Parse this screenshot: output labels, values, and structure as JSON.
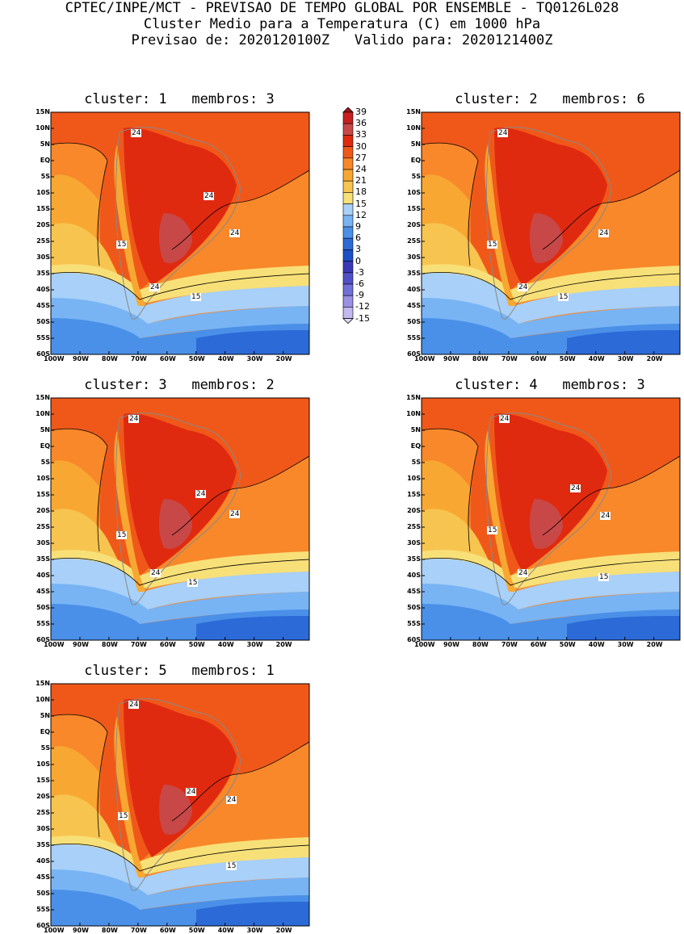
{
  "header": {
    "line1": "CPTEC/INPE/MCT - PREVISAO DE TEMPO GLOBAL POR ENSEMBLE - TQ0126L028",
    "line2": "Cluster Medio para a Temperatura (C) em 1000 hPa",
    "line3": "Previsao de: 2020120100Z   Valido para: 2020121400Z"
  },
  "lat_ticks": [
    "15N",
    "10N",
    "5N",
    "EQ",
    "5S",
    "10S",
    "15S",
    "20S",
    "25S",
    "30S",
    "35S",
    "40S",
    "45S",
    "50S",
    "55S",
    "60S"
  ],
  "lon_ticks": [
    "100W",
    "90W",
    "80W",
    "70W",
    "60W",
    "50W",
    "40W",
    "30W",
    "20W"
  ],
  "colorbar": {
    "labels": [
      "39",
      "36",
      "33",
      "30",
      "27",
      "24",
      "21",
      "18",
      "15",
      "12",
      "9",
      "6",
      "3",
      "0",
      "-3",
      "-6",
      "-9",
      "-12",
      "-15"
    ],
    "colors": [
      "#a01818",
      "#c82020",
      "#c84848",
      "#e02a10",
      "#f0581a",
      "#f8882a",
      "#f8a832",
      "#f8c450",
      "#f8e078",
      "#a8d0f8",
      "#78b4f4",
      "#4a90e8",
      "#2c6ad8",
      "#1c50c8",
      "#3a3ab8",
      "#5050c8",
      "#7070d8",
      "#9a90e4",
      "#c4b8f0",
      "#e0d8f8"
    ]
  },
  "panels": [
    {
      "title": "cluster: 1   membros: 3",
      "labels": [
        "24",
        "24",
        "24",
        "15",
        "24",
        "15"
      ]
    },
    {
      "title": "cluster: 2   membros: 6",
      "labels": [
        "24",
        "24",
        "15",
        "24",
        "15"
      ]
    },
    {
      "title": "cluster: 3   membros: 2",
      "labels": [
        "24",
        "24",
        "24",
        "15",
        "24",
        "15"
      ]
    },
    {
      "title": "cluster: 4   membros: 3",
      "labels": [
        "24",
        "24",
        "24",
        "15",
        "24",
        "15"
      ]
    },
    {
      "title": "cluster: 5   membros: 1",
      "labels": [
        "24",
        "24",
        "24",
        "15",
        "15"
      ]
    }
  ]
}
